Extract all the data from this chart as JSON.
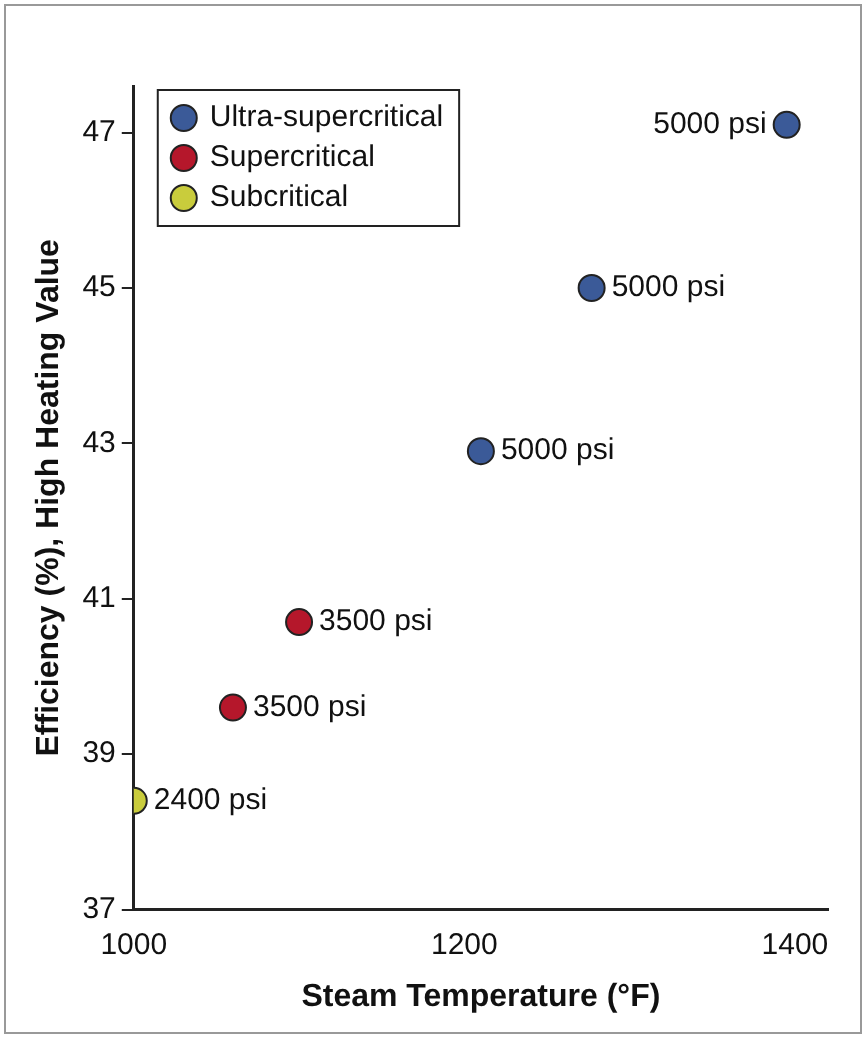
{
  "chart_data": {
    "type": "scatter",
    "xlabel": "Steam Temperature (°F)",
    "ylabel": "Efficiency (%), High Heating Value",
    "xlim": [
      1000,
      1420
    ],
    "xticks": [
      1000,
      1200,
      1400
    ],
    "ylim": [
      37,
      47.6
    ],
    "yticks": [
      37,
      39,
      41,
      43,
      45,
      47
    ],
    "grid": false,
    "annotations": [
      {
        "text": "5000 psi",
        "x": 1395,
        "y": 47.1
      },
      {
        "text": "5000 psi",
        "x": 1277,
        "y": 45.0
      },
      {
        "text": "5000 psi",
        "x": 1210,
        "y": 42.9
      },
      {
        "text": "3500 psi",
        "x": 1100,
        "y": 40.7
      },
      {
        "text": "3500 psi",
        "x": 1060,
        "y": 39.6
      },
      {
        "text": "2400 psi",
        "x": 1000,
        "y": 38.4
      }
    ],
    "legend": "top left",
    "marker": "circle",
    "series": [
      {
        "name": "Ultra-supercritical",
        "color": "#3b5a98",
        "x": [
          1395,
          1277,
          1210
        ],
        "values": [
          47.1,
          45.0,
          42.9
        ]
      },
      {
        "name": "Supercritical",
        "color": "#b5172b",
        "x": [
          1100,
          1060
        ],
        "values": [
          40.7,
          39.6
        ]
      },
      {
        "name": "Subcritical",
        "color": "#c9cc3c",
        "x": [
          1000
        ],
        "values": [
          38.4
        ]
      }
    ]
  }
}
